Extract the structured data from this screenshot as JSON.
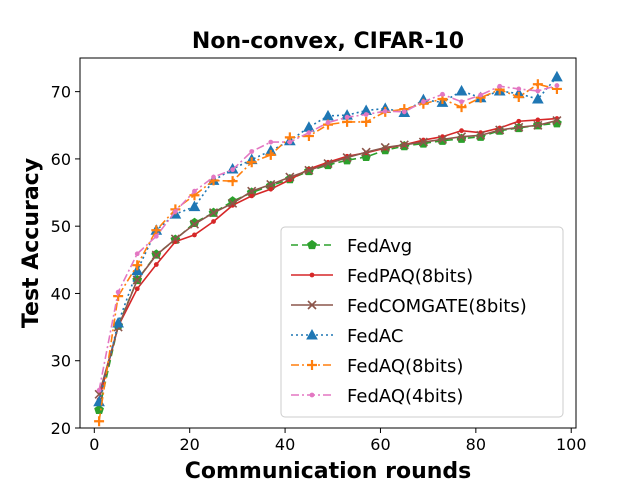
{
  "chart_data": {
    "type": "line",
    "title": "Non-convex, CIFAR-10",
    "xlabel": "Communication rounds",
    "ylabel": "Test Accuracy",
    "xlim": [
      -3,
      101
    ],
    "ylim": [
      20,
      75
    ],
    "xticks": [
      0,
      20,
      40,
      60,
      80,
      100
    ],
    "yticks": [
      20,
      30,
      40,
      50,
      60,
      70
    ],
    "grid": false,
    "legend_position": "lower right",
    "x": [
      1,
      5,
      9,
      13,
      17,
      21,
      25,
      29,
      33,
      37,
      41,
      45,
      49,
      53,
      57,
      61,
      65,
      69,
      73,
      77,
      81,
      85,
      89,
      93,
      97
    ],
    "series": [
      {
        "name": "FedAvg",
        "color": "#2ca02c",
        "linestyle": "dashed",
        "marker": "pentagon",
        "values": [
          22.7,
          35.2,
          42.0,
          45.8,
          48.0,
          50.5,
          52.0,
          53.7,
          55.0,
          56.0,
          57.0,
          58.2,
          59.1,
          59.8,
          60.3,
          61.3,
          61.9,
          62.3,
          62.7,
          63.0,
          63.3,
          64.2,
          64.6,
          65.0,
          65.3
        ]
      },
      {
        "name": "FedPAQ(8bits)",
        "color": "#d62728",
        "linestyle": "solid",
        "marker": "point",
        "values": [
          24.2,
          35.1,
          40.7,
          44.3,
          47.7,
          48.7,
          50.7,
          53.1,
          54.5,
          55.5,
          56.9,
          58.5,
          59.5,
          60.4,
          60.9,
          61.6,
          62.1,
          62.8,
          63.3,
          64.2,
          63.9,
          64.6,
          65.6,
          65.8,
          66.0
        ]
      },
      {
        "name": "FedCOMGATE(8bits)",
        "color": "#8c564b",
        "linestyle": "solid",
        "marker": "x",
        "values": [
          25.0,
          35.0,
          42.0,
          45.7,
          48.1,
          50.3,
          52.0,
          53.4,
          55.2,
          56.2,
          57.3,
          58.3,
          59.3,
          60.2,
          61.0,
          61.7,
          62.1,
          62.5,
          62.9,
          63.3,
          63.5,
          64.3,
          64.7,
          65.0,
          65.7
        ]
      },
      {
        "name": "FedAC",
        "color": "#1f77b4",
        "linestyle": "dotted",
        "marker": "triangle",
        "values": [
          23.9,
          35.6,
          43.4,
          49.4,
          51.8,
          52.9,
          56.8,
          58.5,
          59.9,
          61.2,
          62.7,
          64.7,
          66.4,
          66.5,
          67.2,
          67.5,
          66.9,
          68.8,
          68.4,
          70.1,
          69.1,
          70.1,
          69.7,
          68.9,
          72.2
        ]
      },
      {
        "name": "FedAQ(8bits)",
        "color": "#ff7f0e",
        "linestyle": "dashdot",
        "marker": "plus",
        "values": [
          21.0,
          39.6,
          44.2,
          49.4,
          52.5,
          54.6,
          56.8,
          56.7,
          59.5,
          60.6,
          63.2,
          63.4,
          65.1,
          65.5,
          65.5,
          67.0,
          67.4,
          68.2,
          68.9,
          67.7,
          69.1,
          70.3,
          69.2,
          71.1,
          70.4
        ]
      },
      {
        "name": "FedAQ(4bits)",
        "color": "#e377c2",
        "linestyle": "dashdot",
        "marker": "point",
        "values": [
          25.6,
          40.2,
          45.9,
          48.5,
          52.2,
          55.2,
          57.3,
          58.4,
          61.1,
          62.5,
          62.5,
          63.9,
          65.4,
          66.2,
          66.6,
          67.1,
          67.0,
          68.5,
          69.6,
          68.5,
          69.5,
          70.8,
          70.4,
          70.1,
          70.9
        ]
      }
    ]
  }
}
